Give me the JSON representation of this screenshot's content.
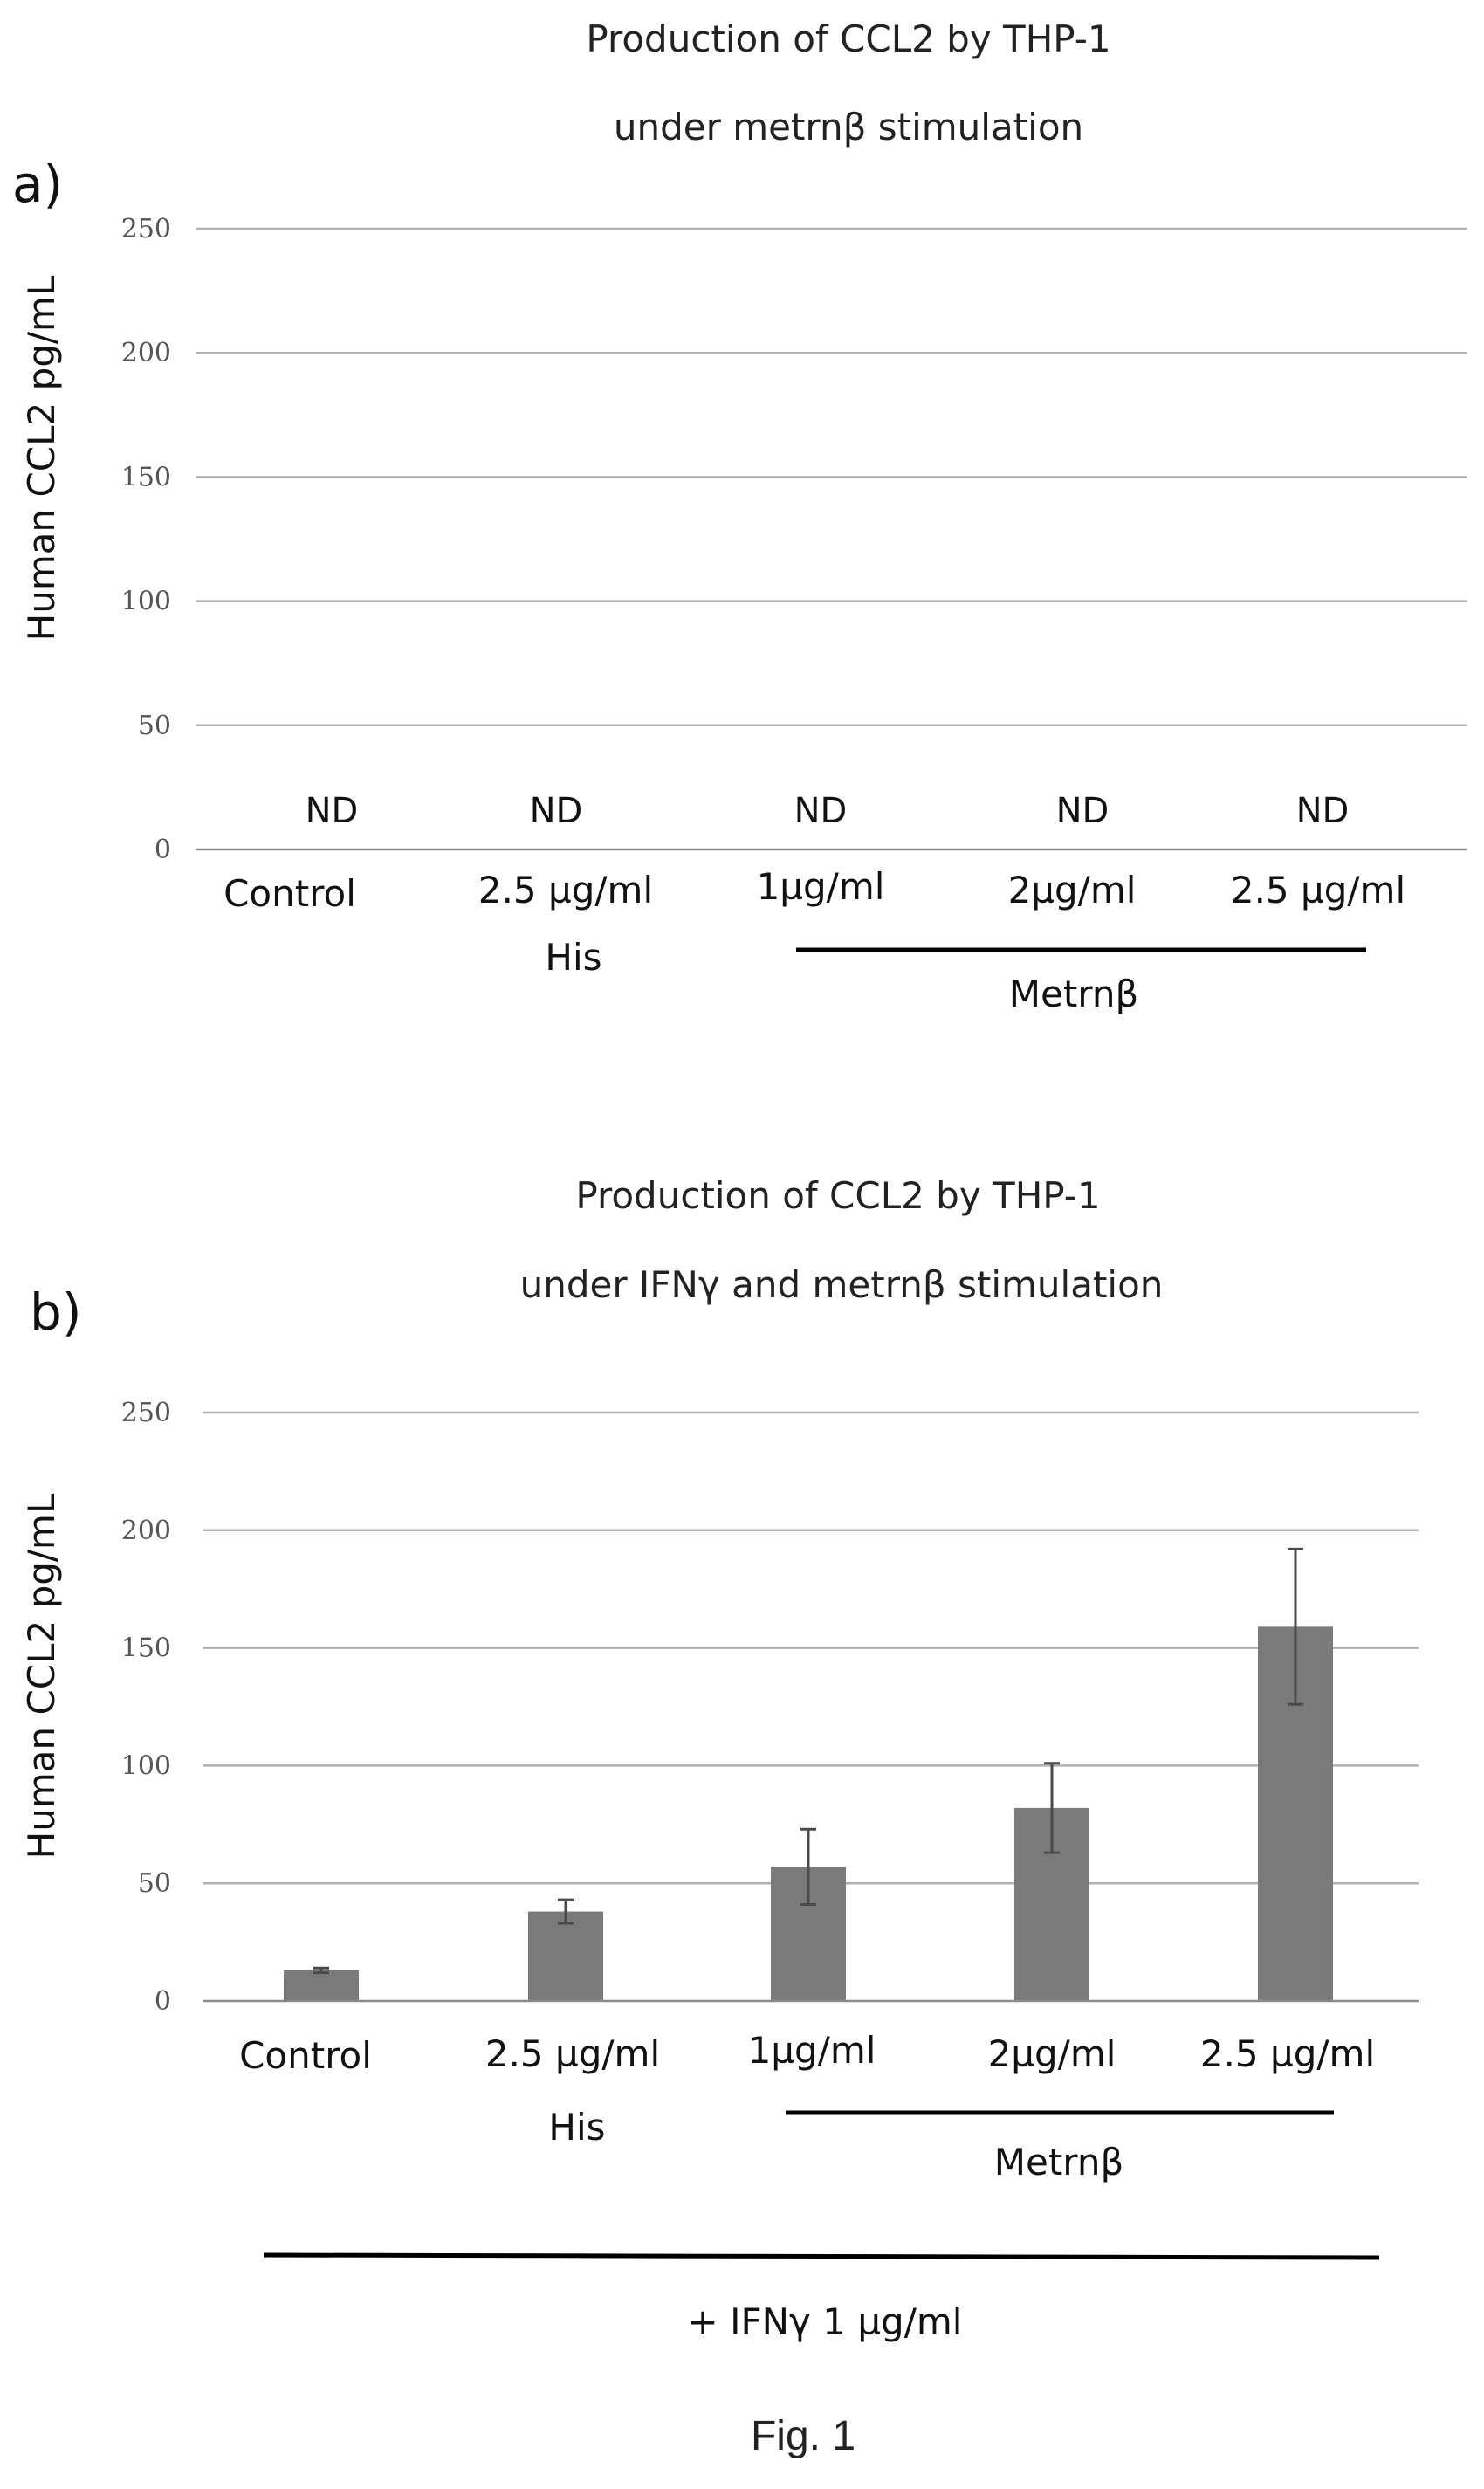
{
  "figure_caption": "Fig. 1",
  "chart_data": [
    {
      "type": "bar",
      "panel_label": "a)",
      "title": "Production of CCL2 by THP-1",
      "subtitle": "under metrnβ stimulation",
      "ylabel": "Human CCL2 pg/mL",
      "ylim": [
        0,
        250
      ],
      "yticks": [
        "0",
        "50",
        "100",
        "150",
        "200",
        "250"
      ],
      "categories": [
        "Control",
        "2.5 µg/ml",
        "1µg/ml",
        "2µg/ml",
        "2.5 µg/ml"
      ],
      "values": [
        null,
        null,
        null,
        null,
        null
      ],
      "data_labels": [
        "ND",
        "ND",
        "ND",
        "ND",
        "ND"
      ],
      "group_labels": {
        "his": "His",
        "metrn": "Metrnβ"
      },
      "grid": true
    },
    {
      "type": "bar",
      "panel_label": "b)",
      "title": "Production of CCL2 by THP-1",
      "subtitle": "under IFNγ and metrnβ stimulation",
      "ylabel": "Human CCL2 pg/mL",
      "ylim": [
        0,
        250
      ],
      "yticks": [
        "0",
        "50",
        "100",
        "150",
        "200",
        "250"
      ],
      "categories": [
        "Control",
        "2.5 µg/ml",
        "1µg/ml",
        "2µg/ml",
        "2.5 µg/ml"
      ],
      "values": [
        13,
        38,
        57,
        82,
        159
      ],
      "error": [
        1,
        5,
        16,
        19,
        33
      ],
      "group_labels": {
        "his": "His",
        "metrn": "Metrnβ",
        "treatment": "+ IFNγ 1 µg/ml"
      },
      "grid": true
    }
  ]
}
